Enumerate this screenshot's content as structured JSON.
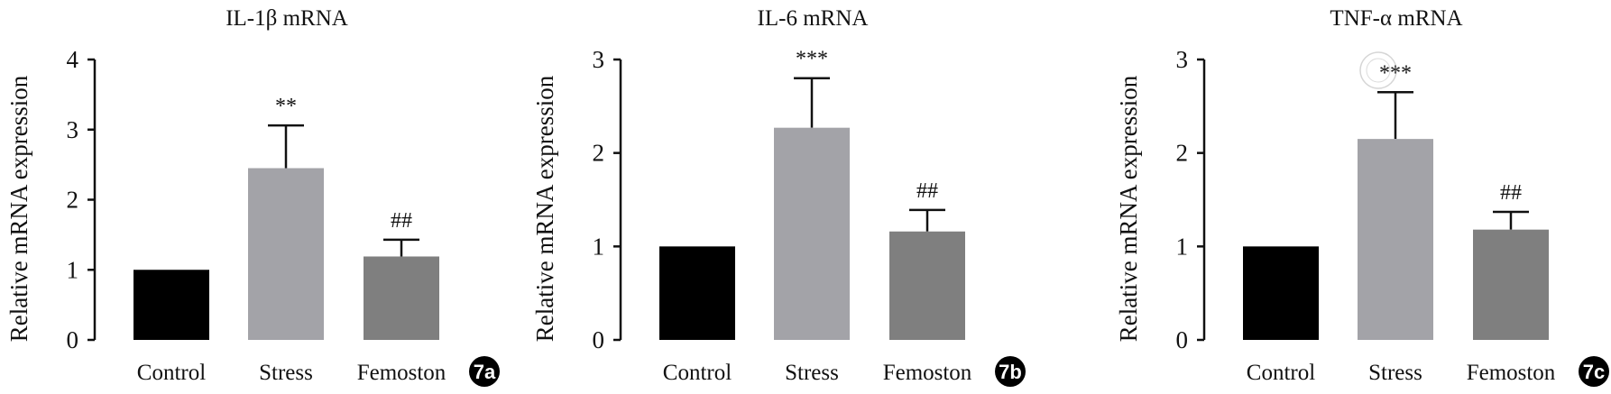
{
  "chart_data": [
    {
      "type": "bar",
      "panel_label": "7a",
      "title": "IL-1β mRNA",
      "ylabel": "Relative mRNA expression",
      "xlabel": "",
      "categories": [
        "Control",
        "Stress",
        "Femoston"
      ],
      "values": [
        1.0,
        2.45,
        1.19
      ],
      "error_upper": [
        0,
        0.61,
        0.24
      ],
      "annotations": [
        "",
        "**",
        "##"
      ],
      "ylim": [
        0,
        4
      ],
      "yticks": [
        "0",
        "1",
        "2",
        "3",
        "4"
      ],
      "colors": [
        "#000000",
        "#a3a3a8",
        "#7f7f7f"
      ]
    },
    {
      "type": "bar",
      "panel_label": "7b",
      "title": "IL-6 mRNA",
      "ylabel": "Relative mRNA expression",
      "xlabel": "",
      "categories": [
        "Control",
        "Stress",
        "Femoston"
      ],
      "values": [
        1.0,
        2.27,
        1.16
      ],
      "error_upper": [
        0,
        0.53,
        0.23
      ],
      "annotations": [
        "",
        "***",
        "##"
      ],
      "ylim": [
        0,
        3
      ],
      "yticks": [
        "0",
        "1",
        "2",
        "3"
      ],
      "colors": [
        "#000000",
        "#a3a3a8",
        "#7f7f7f"
      ]
    },
    {
      "type": "bar",
      "panel_label": "7c",
      "title": "TNF-α mRNA",
      "ylabel": "Relative mRNA expression",
      "xlabel": "",
      "categories": [
        "Control",
        "Stress",
        "Femoston"
      ],
      "values": [
        1.0,
        2.15,
        1.18
      ],
      "error_upper": [
        0,
        0.5,
        0.19
      ],
      "annotations": [
        "",
        "***",
        "##"
      ],
      "ylim": [
        0,
        3
      ],
      "yticks": [
        "0",
        "1",
        "2",
        "3"
      ],
      "colors": [
        "#000000",
        "#a3a3a8",
        "#7f7f7f"
      ]
    }
  ]
}
